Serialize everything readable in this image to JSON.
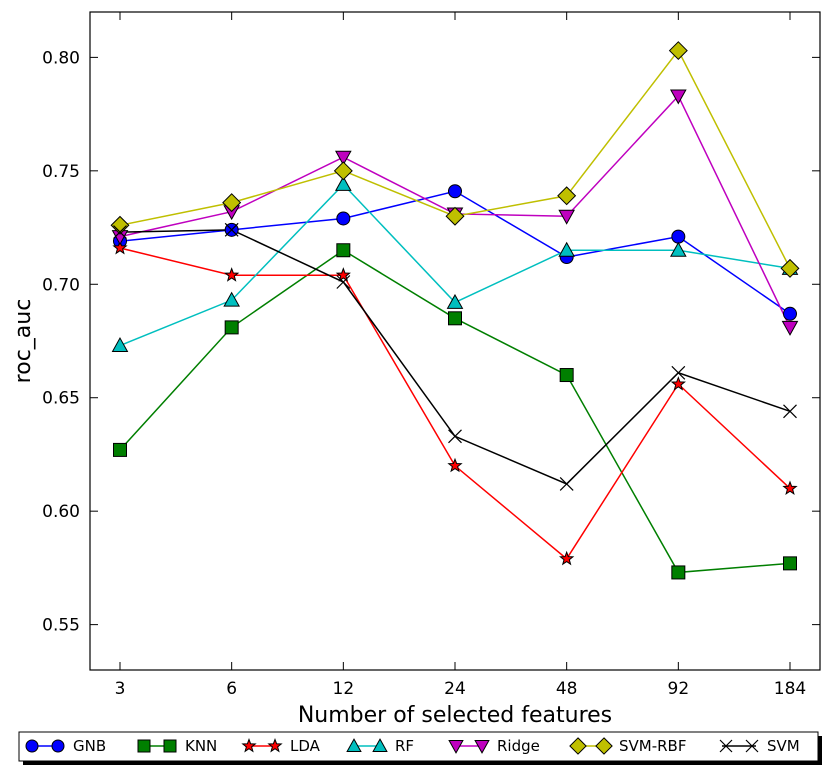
{
  "chart_data": {
    "type": "line",
    "title": "",
    "xlabel": "Number of selected features",
    "ylabel": "roc_auc",
    "categories": [
      "3",
      "6",
      "12",
      "24",
      "48",
      "92",
      "184"
    ],
    "ylim": [
      0.53,
      0.82
    ],
    "yticks": [
      "0.55",
      "0.60",
      "0.65",
      "0.70",
      "0.75",
      "0.80"
    ],
    "ytick_values": [
      0.55,
      0.6,
      0.65,
      0.7,
      0.75,
      0.8
    ],
    "grid": false,
    "legend_position": "bottom",
    "series": [
      {
        "name": "GNB",
        "color": "#0000ff",
        "fill": "#0000ff",
        "marker": "circle",
        "values": [
          0.719,
          0.724,
          0.729,
          0.741,
          0.712,
          0.721,
          0.687
        ]
      },
      {
        "name": "KNN",
        "color": "#007f00",
        "fill": "#007f00",
        "marker": "square",
        "values": [
          0.627,
          0.681,
          0.715,
          0.685,
          0.66,
          0.573,
          0.577
        ]
      },
      {
        "name": "LDA",
        "color": "#ff0000",
        "fill": "#ff0000",
        "marker": "star",
        "values": [
          0.716,
          0.704,
          0.704,
          0.62,
          0.579,
          0.656,
          0.61
        ]
      },
      {
        "name": "RF",
        "color": "#00bfbf",
        "fill": "#00bfbf",
        "marker": "triangle-up",
        "values": [
          0.673,
          0.693,
          0.744,
          0.692,
          0.715,
          0.715,
          0.707
        ]
      },
      {
        "name": "Ridge",
        "color": "#bf00bf",
        "fill": "#bf00bf",
        "marker": "triangle-down",
        "values": [
          0.721,
          0.732,
          0.756,
          0.731,
          0.73,
          0.783,
          0.681
        ]
      },
      {
        "name": "SVM-RBF",
        "color": "#bfbf00",
        "fill": "#bfbf00",
        "marker": "diamond",
        "values": [
          0.726,
          0.736,
          0.75,
          0.73,
          0.739,
          0.803,
          0.707
        ]
      },
      {
        "name": "SVM",
        "color": "#000000",
        "fill": "none",
        "marker": "x",
        "values": [
          0.723,
          0.724,
          0.701,
          0.633,
          0.612,
          0.661,
          0.644
        ]
      }
    ]
  }
}
